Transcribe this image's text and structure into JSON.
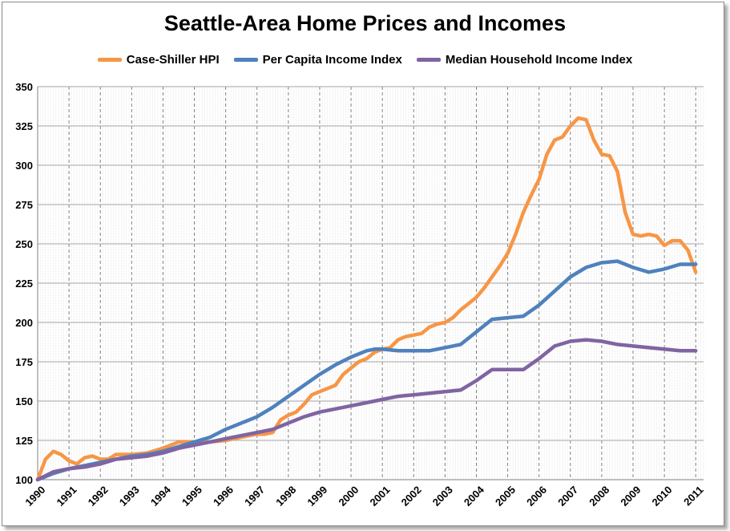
{
  "chart_data": {
    "type": "line",
    "title": "Seattle-Area Home Prices and Incomes",
    "xlabel": "",
    "ylabel": "",
    "ylim": [
      100,
      350
    ],
    "yticks": [
      100,
      125,
      150,
      175,
      200,
      225,
      250,
      275,
      300,
      325,
      350
    ],
    "xlim": [
      1990,
      2011.25
    ],
    "xticks": [
      "1990",
      "1991",
      "1992",
      "1993",
      "1994",
      "1995",
      "1996",
      "1997",
      "1998",
      "1999",
      "2000",
      "2001",
      "2002",
      "2003",
      "2004",
      "2005",
      "2006",
      "2007",
      "2008",
      "2009",
      "2010",
      "2011"
    ],
    "legend_position": "top",
    "grid": true,
    "series": [
      {
        "name": "Case-Shiller HPI",
        "color": "#F79646",
        "x": [
          1990,
          1990.25,
          1990.5,
          1990.75,
          1991,
          1991.25,
          1991.5,
          1991.75,
          1992,
          1992.25,
          1992.5,
          1992.75,
          1993,
          1993.5,
          1994,
          1994.5,
          1995,
          1995.5,
          1996,
          1996.5,
          1997,
          1997.25,
          1997.5,
          1997.75,
          1998,
          1998.25,
          1998.5,
          1998.75,
          1999,
          1999.25,
          1999.5,
          1999.75,
          2000,
          2000.25,
          2000.5,
          2000.75,
          2001,
          2001.25,
          2001.5,
          2001.75,
          2002,
          2002.25,
          2002.5,
          2002.75,
          2003,
          2003.25,
          2003.5,
          2003.75,
          2004,
          2004.25,
          2004.5,
          2004.75,
          2005,
          2005.25,
          2005.5,
          2005.75,
          2006,
          2006.25,
          2006.5,
          2006.75,
          2007,
          2007.25,
          2007.5,
          2007.75,
          2008,
          2008.25,
          2008.5,
          2008.75,
          2009,
          2009.25,
          2009.5,
          2009.75,
          2010,
          2010.25,
          2010.5,
          2010.75,
          2011
        ],
        "values": [
          100,
          113,
          118,
          116,
          112,
          110,
          114,
          115,
          113,
          113,
          116,
          116,
          116,
          117,
          120,
          124,
          124,
          124,
          125,
          127,
          129,
          129,
          130,
          138,
          141,
          143,
          148,
          154,
          156,
          158,
          160,
          167,
          171,
          175,
          177,
          181,
          183,
          184,
          189,
          191,
          192,
          193,
          197,
          199,
          200,
          203,
          208,
          212,
          216,
          222,
          229,
          236,
          244,
          256,
          270,
          281,
          291,
          307,
          316,
          318,
          325,
          330,
          329,
          316,
          307,
          306,
          296,
          270,
          256,
          255,
          256,
          255,
          249,
          252,
          252,
          246,
          232
        ]
      },
      {
        "name": "Per Capita Income Index",
        "color": "#4F81BD",
        "x": [
          1990,
          1990.5,
          1991,
          1991.5,
          1992,
          1992.5,
          1993,
          1993.5,
          1994,
          1994.5,
          1995,
          1995.5,
          1996,
          1996.5,
          1997,
          1997.5,
          1998,
          1998.5,
          1999,
          1999.5,
          2000,
          2000.5,
          2000.75,
          2001,
          2001.5,
          2002,
          2002.5,
          2003,
          2003.5,
          2004,
          2004.5,
          2005,
          2005.5,
          2006,
          2006.5,
          2007,
          2007.5,
          2008,
          2008.5,
          2009,
          2009.5,
          2010,
          2010.5,
          2011
        ],
        "values": [
          100,
          104,
          107,
          109,
          111,
          113,
          115,
          116,
          118,
          121,
          124,
          127,
          132,
          136,
          140,
          146,
          153,
          160,
          167,
          173,
          178,
          182,
          183,
          183,
          182,
          182,
          182,
          184,
          186,
          194,
          202,
          203,
          204,
          211,
          220,
          229,
          235,
          238,
          239,
          235,
          232,
          234,
          237,
          237
        ]
      },
      {
        "name": "Median Household Income Index",
        "color": "#8064A2",
        "x": [
          1990,
          1990.5,
          1991,
          1991.5,
          1992,
          1992.5,
          1993,
          1993.5,
          1994,
          1994.5,
          1995,
          1995.5,
          1996,
          1996.5,
          1997,
          1997.5,
          1998,
          1998.5,
          1999,
          1999.5,
          2000,
          2000.5,
          2001,
          2001.5,
          2002,
          2002.5,
          2003,
          2003.5,
          2004,
          2004.5,
          2005,
          2005.5,
          2006,
          2006.5,
          2007,
          2007.5,
          2008,
          2008.5,
          2009,
          2009.5,
          2010,
          2010.5,
          2011
        ],
        "values": [
          100,
          105,
          107,
          108,
          110,
          113,
          114,
          115,
          117,
          120,
          122,
          124,
          126,
          128,
          130,
          132,
          136,
          140,
          143,
          145,
          147,
          149,
          151,
          153,
          154,
          155,
          156,
          157,
          163,
          170,
          170,
          170,
          177,
          185,
          188,
          189,
          188,
          186,
          185,
          184,
          183,
          182,
          182
        ]
      }
    ]
  }
}
